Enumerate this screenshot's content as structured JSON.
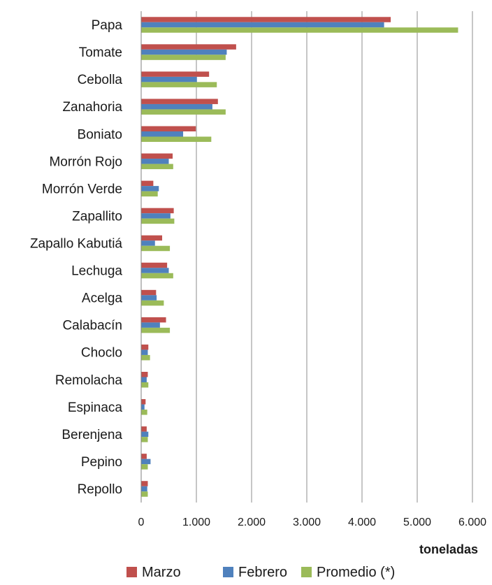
{
  "chart_data": {
    "type": "bar",
    "orientation": "horizontal",
    "categories": [
      "Papa",
      "Tomate",
      "Cebolla",
      "Zanahoria",
      "Boniato",
      "Morrón Rojo",
      "Morrón Verde",
      "Zapallito",
      "Zapallo Kabutiá",
      "Lechuga",
      "Acelga",
      "Calabacín",
      "Choclo",
      "Remolacha",
      "Espinaca",
      "Berenjena",
      "Pepino",
      "Repollo"
    ],
    "series": [
      {
        "name": "Marzo",
        "color": "#c0504d",
        "values": [
          4520,
          1720,
          1230,
          1390,
          990,
          570,
          220,
          590,
          380,
          470,
          270,
          450,
          130,
          120,
          80,
          100,
          100,
          120
        ]
      },
      {
        "name": "Febrero",
        "color": "#4f81bd",
        "values": [
          4400,
          1550,
          1010,
          1290,
          760,
          500,
          320,
          530,
          250,
          500,
          280,
          340,
          120,
          100,
          60,
          130,
          170,
          110
        ]
      },
      {
        "name": "Promedio (*)",
        "color": "#9bbb59",
        "values": [
          5740,
          1530,
          1370,
          1530,
          1270,
          580,
          300,
          600,
          520,
          580,
          410,
          520,
          160,
          130,
          110,
          120,
          120,
          120
        ]
      }
    ],
    "xlabel": "toneladas",
    "xlim": [
      0,
      6000
    ],
    "xticks": [
      0,
      1000,
      2000,
      3000,
      4000,
      5000,
      6000
    ],
    "xtick_labels": [
      "0",
      "1.000",
      "2.000",
      "3.000",
      "4.000",
      "5.000",
      "6.000"
    ],
    "grid": true,
    "legend": "bottom"
  }
}
